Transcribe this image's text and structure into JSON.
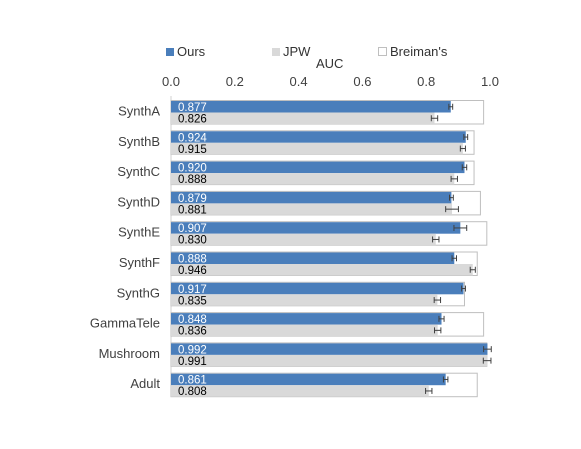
{
  "colors": {
    "ours": "#4a7ebb",
    "jpw": "#d9d9d9",
    "breiman": "#ffffff",
    "breiman_border": "#bfbfbf",
    "text": "#404040",
    "errorbar": "#404040"
  },
  "legend": {
    "ours": "Ours",
    "jpw": "JPW",
    "breiman": "Breiman's"
  },
  "chart_data": {
    "type": "bar",
    "orientation": "horizontal",
    "xlabel": "AUC",
    "xlim": [
      0,
      1
    ],
    "xticks": [
      "0.0",
      "0.2",
      "0.4",
      "0.6",
      "0.8",
      "1.0"
    ],
    "xtick_values": [
      0,
      0.2,
      0.4,
      0.6,
      0.8,
      1.0
    ],
    "legend_position": "top",
    "grid": false,
    "categories": [
      "SynthA",
      "SynthB",
      "SynthC",
      "SynthD",
      "SynthE",
      "SynthF",
      "SynthG",
      "GammaTele",
      "Mushroom",
      "Adult"
    ],
    "series": [
      {
        "name": "Ours",
        "values": [
          0.877,
          0.924,
          0.92,
          0.879,
          0.907,
          0.888,
          0.917,
          0.848,
          0.992,
          0.861
        ],
        "labels": [
          "0.877",
          "0.924",
          "0.920",
          "0.879",
          "0.907",
          "0.888",
          "0.917",
          "0.848",
          "0.992",
          "0.861"
        ],
        "errors": [
          0.006,
          0.006,
          0.007,
          0.006,
          0.02,
          0.007,
          0.006,
          0.008,
          0.012,
          0.007
        ]
      },
      {
        "name": "JPW",
        "values": [
          0.826,
          0.915,
          0.888,
          0.881,
          0.83,
          0.946,
          0.835,
          0.836,
          0.991,
          0.808
        ],
        "labels": [
          "0.826",
          "0.915",
          "0.888",
          "0.881",
          "0.830",
          "0.946",
          "0.835",
          "0.836",
          "0.991",
          "0.808"
        ],
        "errors": [
          0.01,
          0.008,
          0.01,
          0.02,
          0.01,
          0.008,
          0.01,
          0.01,
          0.012,
          0.01
        ]
      },
      {
        "name": "Breiman's",
        "values": [
          0.98,
          0.95,
          0.95,
          0.97,
          0.99,
          0.96,
          0.92,
          0.98,
          0.99,
          0.96
        ],
        "labels": [],
        "errors": []
      }
    ]
  }
}
